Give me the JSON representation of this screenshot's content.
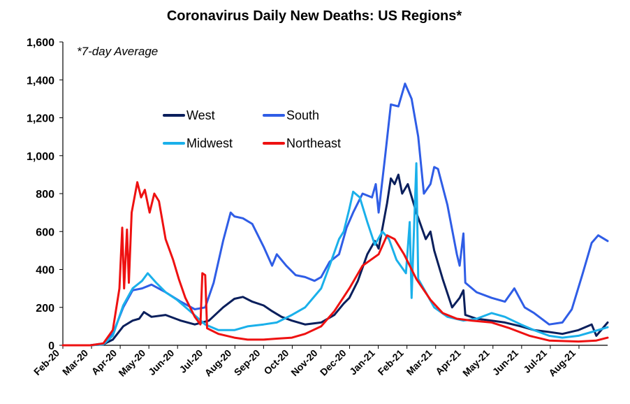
{
  "chart_data": {
    "type": "line",
    "title": "Coronavirus Daily New Deaths: US Regions*",
    "annotation": "*7-day Average",
    "xlabel": "",
    "ylabel": "",
    "ylim": [
      0,
      1600
    ],
    "yticks": [
      "0",
      "200",
      "400",
      "600",
      "800",
      "1,000",
      "1,200",
      "1,400",
      "1,600"
    ],
    "xticks": [
      "Feb-20",
      "Mar-20",
      "Apr-20",
      "May-20",
      "Jun-20",
      "Jul-20",
      "Aug-20",
      "Sep-20",
      "Oct-20",
      "Nov-20",
      "Dec-20",
      "Jan-21",
      "Feb-21",
      "Mar-21",
      "Apr-21",
      "May-21",
      "Jun-21",
      "Jul-21",
      "Aug-21"
    ],
    "legend_position": "upper-left",
    "series": [
      {
        "name": "West",
        "color": "#0a1f5c",
        "points": [
          [
            "2020-02-01",
            0
          ],
          [
            "2020-03-01",
            0
          ],
          [
            "2020-03-15",
            5
          ],
          [
            "2020-03-25",
            30
          ],
          [
            "2020-04-05",
            100
          ],
          [
            "2020-04-15",
            130
          ],
          [
            "2020-04-22",
            140
          ],
          [
            "2020-04-27",
            175
          ],
          [
            "2020-05-05",
            150
          ],
          [
            "2020-05-20",
            160
          ],
          [
            "2020-06-05",
            130
          ],
          [
            "2020-06-20",
            110
          ],
          [
            "2020-07-05",
            130
          ],
          [
            "2020-07-20",
            200
          ],
          [
            "2020-08-01",
            245
          ],
          [
            "2020-08-10",
            255
          ],
          [
            "2020-08-20",
            230
          ],
          [
            "2020-09-01",
            210
          ],
          [
            "2020-09-10",
            180
          ],
          [
            "2020-09-20",
            150
          ],
          [
            "2020-10-01",
            130
          ],
          [
            "2020-10-15",
            110
          ],
          [
            "2020-11-01",
            120
          ],
          [
            "2020-11-15",
            160
          ],
          [
            "2020-11-25",
            220
          ],
          [
            "2020-12-01",
            250
          ],
          [
            "2020-12-10",
            340
          ],
          [
            "2020-12-20",
            480
          ],
          [
            "2020-12-28",
            550
          ],
          [
            "2021-01-01",
            510
          ],
          [
            "2021-01-10",
            750
          ],
          [
            "2021-01-14",
            880
          ],
          [
            "2021-01-18",
            850
          ],
          [
            "2021-01-22",
            900
          ],
          [
            "2021-01-26",
            800
          ],
          [
            "2021-02-01",
            850
          ],
          [
            "2021-02-10",
            700
          ],
          [
            "2021-02-20",
            560
          ],
          [
            "2021-02-25",
            600
          ],
          [
            "2021-03-01",
            500
          ],
          [
            "2021-03-10",
            350
          ],
          [
            "2021-03-20",
            200
          ],
          [
            "2021-03-28",
            250
          ],
          [
            "2021-04-01",
            290
          ],
          [
            "2021-04-03",
            160
          ],
          [
            "2021-04-15",
            140
          ],
          [
            "2021-05-01",
            130
          ],
          [
            "2021-05-15",
            120
          ],
          [
            "2021-06-01",
            100
          ],
          [
            "2021-06-15",
            80
          ],
          [
            "2021-07-01",
            70
          ],
          [
            "2021-07-15",
            60
          ],
          [
            "2021-08-01",
            80
          ],
          [
            "2021-08-15",
            110
          ],
          [
            "2021-08-20",
            50
          ],
          [
            "2021-09-01",
            120
          ]
        ]
      },
      {
        "name": "South",
        "color": "#2f5de6",
        "points": [
          [
            "2020-02-01",
            0
          ],
          [
            "2020-03-01",
            0
          ],
          [
            "2020-03-15",
            10
          ],
          [
            "2020-03-25",
            60
          ],
          [
            "2020-04-05",
            200
          ],
          [
            "2020-04-15",
            290
          ],
          [
            "2020-04-25",
            300
          ],
          [
            "2020-05-05",
            320
          ],
          [
            "2020-05-20",
            280
          ],
          [
            "2020-06-05",
            230
          ],
          [
            "2020-06-20",
            190
          ],
          [
            "2020-07-01",
            200
          ],
          [
            "2020-07-10",
            330
          ],
          [
            "2020-07-20",
            550
          ],
          [
            "2020-07-28",
            700
          ],
          [
            "2020-08-01",
            680
          ],
          [
            "2020-08-10",
            670
          ],
          [
            "2020-08-20",
            640
          ],
          [
            "2020-09-01",
            520
          ],
          [
            "2020-09-10",
            420
          ],
          [
            "2020-09-15",
            480
          ],
          [
            "2020-09-25",
            420
          ],
          [
            "2020-10-05",
            370
          ],
          [
            "2020-10-15",
            360
          ],
          [
            "2020-10-25",
            340
          ],
          [
            "2020-11-01",
            360
          ],
          [
            "2020-11-10",
            440
          ],
          [
            "2020-11-20",
            480
          ],
          [
            "2020-11-28",
            620
          ],
          [
            "2020-12-05",
            700
          ],
          [
            "2020-12-15",
            800
          ],
          [
            "2020-12-25",
            780
          ],
          [
            "2020-12-29",
            850
          ],
          [
            "2021-01-01",
            700
          ],
          [
            "2021-01-08",
            1000
          ],
          [
            "2021-01-14",
            1270
          ],
          [
            "2021-01-22",
            1260
          ],
          [
            "2021-01-29",
            1380
          ],
          [
            "2021-02-05",
            1300
          ],
          [
            "2021-02-12",
            1100
          ],
          [
            "2021-02-18",
            800
          ],
          [
            "2021-02-25",
            850
          ],
          [
            "2021-03-01",
            940
          ],
          [
            "2021-03-05",
            930
          ],
          [
            "2021-03-15",
            740
          ],
          [
            "2021-03-25",
            480
          ],
          [
            "2021-03-28",
            420
          ],
          [
            "2021-04-01",
            590
          ],
          [
            "2021-04-03",
            330
          ],
          [
            "2021-04-15",
            280
          ],
          [
            "2021-05-01",
            250
          ],
          [
            "2021-05-15",
            230
          ],
          [
            "2021-05-25",
            300
          ],
          [
            "2021-06-05",
            200
          ],
          [
            "2021-06-15",
            170
          ],
          [
            "2021-07-01",
            110
          ],
          [
            "2021-07-15",
            120
          ],
          [
            "2021-07-25",
            190
          ],
          [
            "2021-08-05",
            370
          ],
          [
            "2021-08-15",
            540
          ],
          [
            "2021-08-22",
            580
          ],
          [
            "2021-09-01",
            550
          ]
        ]
      },
      {
        "name": "Midwest",
        "color": "#1ab0ea",
        "points": [
          [
            "2020-02-01",
            0
          ],
          [
            "2020-03-01",
            0
          ],
          [
            "2020-03-15",
            5
          ],
          [
            "2020-03-25",
            50
          ],
          [
            "2020-04-05",
            210
          ],
          [
            "2020-04-15",
            300
          ],
          [
            "2020-04-25",
            340
          ],
          [
            "2020-05-01",
            380
          ],
          [
            "2020-05-10",
            330
          ],
          [
            "2020-05-20",
            280
          ],
          [
            "2020-06-01",
            240
          ],
          [
            "2020-06-15",
            180
          ],
          [
            "2020-07-01",
            110
          ],
          [
            "2020-07-15",
            80
          ],
          [
            "2020-08-01",
            80
          ],
          [
            "2020-08-15",
            100
          ],
          [
            "2020-09-01",
            110
          ],
          [
            "2020-09-15",
            120
          ],
          [
            "2020-10-01",
            160
          ],
          [
            "2020-10-15",
            200
          ],
          [
            "2020-11-01",
            300
          ],
          [
            "2020-11-10",
            420
          ],
          [
            "2020-11-20",
            560
          ],
          [
            "2020-11-25",
            600
          ],
          [
            "2020-12-01",
            720
          ],
          [
            "2020-12-05",
            810
          ],
          [
            "2020-12-12",
            780
          ],
          [
            "2020-12-20",
            650
          ],
          [
            "2020-12-28",
            530
          ],
          [
            "2021-01-05",
            600
          ],
          [
            "2021-01-12",
            560
          ],
          [
            "2021-01-20",
            450
          ],
          [
            "2021-01-30",
            380
          ],
          [
            "2021-02-03",
            650
          ],
          [
            "2021-02-05",
            250
          ],
          [
            "2021-02-10",
            960
          ],
          [
            "2021-02-12",
            350
          ],
          [
            "2021-02-20",
            280
          ],
          [
            "2021-03-01",
            200
          ],
          [
            "2021-03-15",
            150
          ],
          [
            "2021-04-01",
            130
          ],
          [
            "2021-04-15",
            140
          ],
          [
            "2021-05-01",
            170
          ],
          [
            "2021-05-15",
            150
          ],
          [
            "2021-06-01",
            110
          ],
          [
            "2021-06-15",
            80
          ],
          [
            "2021-07-01",
            50
          ],
          [
            "2021-07-15",
            40
          ],
          [
            "2021-08-01",
            50
          ],
          [
            "2021-08-15",
            70
          ],
          [
            "2021-09-01",
            95
          ]
        ]
      },
      {
        "name": "Northeast",
        "color": "#ee1111",
        "points": [
          [
            "2020-02-01",
            0
          ],
          [
            "2020-03-01",
            0
          ],
          [
            "2020-03-15",
            10
          ],
          [
            "2020-03-25",
            80
          ],
          [
            "2020-04-01",
            300
          ],
          [
            "2020-04-04",
            620
          ],
          [
            "2020-04-06",
            300
          ],
          [
            "2020-04-09",
            610
          ],
          [
            "2020-04-11",
            330
          ],
          [
            "2020-04-14",
            700
          ],
          [
            "2020-04-20",
            860
          ],
          [
            "2020-04-24",
            780
          ],
          [
            "2020-04-28",
            820
          ],
          [
            "2020-05-03",
            700
          ],
          [
            "2020-05-08",
            800
          ],
          [
            "2020-05-13",
            760
          ],
          [
            "2020-05-20",
            560
          ],
          [
            "2020-05-28",
            450
          ],
          [
            "2020-06-03",
            350
          ],
          [
            "2020-06-10",
            250
          ],
          [
            "2020-06-20",
            150
          ],
          [
            "2020-06-26",
            110
          ],
          [
            "2020-06-28",
            380
          ],
          [
            "2020-07-01",
            370
          ],
          [
            "2020-07-03",
            90
          ],
          [
            "2020-07-15",
            60
          ],
          [
            "2020-08-01",
            40
          ],
          [
            "2020-08-15",
            30
          ],
          [
            "2020-09-01",
            30
          ],
          [
            "2020-09-15",
            35
          ],
          [
            "2020-10-01",
            40
          ],
          [
            "2020-10-15",
            60
          ],
          [
            "2020-11-01",
            100
          ],
          [
            "2020-11-15",
            180
          ],
          [
            "2020-12-01",
            300
          ],
          [
            "2020-12-15",
            420
          ],
          [
            "2021-01-01",
            480
          ],
          [
            "2021-01-10",
            580
          ],
          [
            "2021-01-18",
            560
          ],
          [
            "2021-01-28",
            480
          ],
          [
            "2021-02-10",
            350
          ],
          [
            "2021-02-25",
            240
          ],
          [
            "2021-03-10",
            170
          ],
          [
            "2021-03-25",
            140
          ],
          [
            "2021-04-10",
            130
          ],
          [
            "2021-05-01",
            120
          ],
          [
            "2021-05-20",
            90
          ],
          [
            "2021-06-10",
            50
          ],
          [
            "2021-07-01",
            25
          ],
          [
            "2021-08-01",
            20
          ],
          [
            "2021-08-20",
            25
          ],
          [
            "2021-09-01",
            40
          ]
        ]
      }
    ]
  }
}
